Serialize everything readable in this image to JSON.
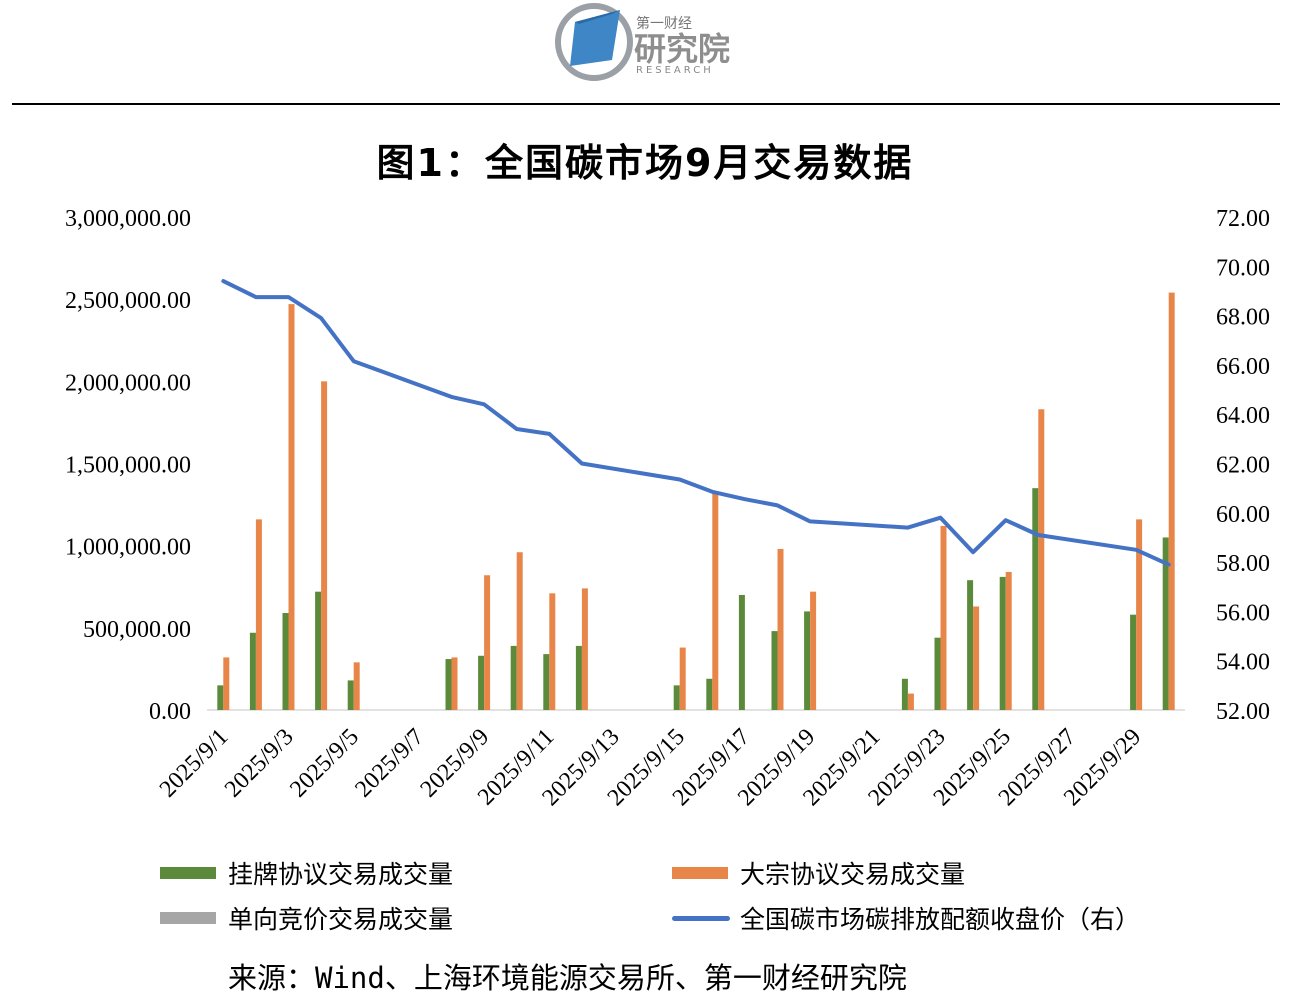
{
  "header": {
    "logo_small": "第一财经",
    "logo_main": "研究院",
    "logo_sub": "RESEARCH"
  },
  "title": "图1：全国碳市场9月交易数据",
  "source": "来源：Wind、上海环境能源交易所、第一财经研究院",
  "colors": {
    "listed": "#5B8A3A",
    "block": "#E8864A",
    "auction": "#A6A6A6",
    "price": "#4472C4"
  },
  "chart_data": {
    "type": "bar",
    "x": [
      "2025/9/1",
      "2025/9/2",
      "2025/9/3",
      "2025/9/4",
      "2025/9/5",
      "2025/9/6",
      "2025/9/7",
      "2025/9/8",
      "2025/9/9",
      "2025/9/10",
      "2025/9/11",
      "2025/9/12",
      "2025/9/13",
      "2025/9/14",
      "2025/9/15",
      "2025/9/16",
      "2025/9/17",
      "2025/9/18",
      "2025/9/19",
      "2025/9/20",
      "2025/9/21",
      "2025/9/22",
      "2025/9/23",
      "2025/9/24",
      "2025/9/25",
      "2025/9/26",
      "2025/9/27",
      "2025/9/28",
      "2025/9/29",
      "2025/9/30"
    ],
    "x_tick_labels": [
      "2025/9/1",
      "2025/9/3",
      "2025/9/5",
      "2025/9/7",
      "2025/9/9",
      "2025/9/11",
      "2025/9/13",
      "2025/9/15",
      "2025/9/17",
      "2025/9/19",
      "2025/9/21",
      "2025/9/23",
      "2025/9/25",
      "2025/9/27",
      "2025/9/29"
    ],
    "y_left_ticks": [
      "0.00",
      "500,000.00",
      "1,000,000.00",
      "1,500,000.00",
      "2,000,000.00",
      "2,500,000.00",
      "3,000,000.00"
    ],
    "y_right_ticks": [
      "52.00",
      "54.00",
      "56.00",
      "58.00",
      "60.00",
      "62.00",
      "64.00",
      "66.00",
      "68.00",
      "70.00",
      "72.00"
    ],
    "ylim_left": [
      0,
      3000000
    ],
    "ylim_right": [
      52,
      72
    ],
    "series": [
      {
        "name": "挂牌协议交易成交量",
        "type": "bar",
        "axis": "left",
        "values": [
          150000,
          470000,
          590000,
          720000,
          180000,
          0,
          0,
          310000,
          330000,
          390000,
          340000,
          390000,
          0,
          0,
          150000,
          190000,
          700000,
          480000,
          600000,
          0,
          0,
          190000,
          440000,
          790000,
          810000,
          1350000,
          0,
          0,
          580000,
          1050000
        ]
      },
      {
        "name": "大宗协议交易成交量",
        "type": "bar",
        "axis": "left",
        "values": [
          320000,
          1160000,
          2470000,
          2000000,
          290000,
          0,
          0,
          320000,
          820000,
          960000,
          710000,
          740000,
          0,
          0,
          380000,
          1330000,
          0,
          980000,
          720000,
          0,
          0,
          100000,
          1120000,
          630000,
          840000,
          1830000,
          0,
          0,
          1160000,
          2540000
        ]
      },
      {
        "name": "单向竞价交易成交量",
        "type": "bar",
        "axis": "left",
        "values": [
          0,
          0,
          0,
          0,
          0,
          0,
          0,
          0,
          0,
          0,
          0,
          0,
          0,
          0,
          0,
          0,
          0,
          0,
          0,
          0,
          0,
          0,
          0,
          0,
          0,
          0,
          0,
          0,
          0,
          0
        ]
      },
      {
        "name": "全国碳市场碳排放配额收盘价（右）",
        "type": "line",
        "axis": "right",
        "x": [
          "2025/9/1",
          "2025/9/2",
          "2025/9/3",
          "2025/9/4",
          "2025/9/5",
          "2025/9/8",
          "2025/9/9",
          "2025/9/10",
          "2025/9/11",
          "2025/9/12",
          "2025/9/15",
          "2025/9/16",
          "2025/9/17",
          "2025/9/18",
          "2025/9/19",
          "2025/9/22",
          "2025/9/23",
          "2025/9/24",
          "2025/9/25",
          "2025/9/26",
          "2025/9/29",
          "2025/9/30"
        ],
        "values": [
          69.4,
          68.75,
          68.75,
          67.9,
          66.15,
          64.7,
          64.4,
          63.4,
          63.2,
          62.0,
          61.35,
          60.85,
          60.55,
          60.3,
          59.65,
          59.4,
          59.8,
          58.4,
          59.7,
          59.1,
          58.5,
          57.9
        ]
      }
    ]
  }
}
